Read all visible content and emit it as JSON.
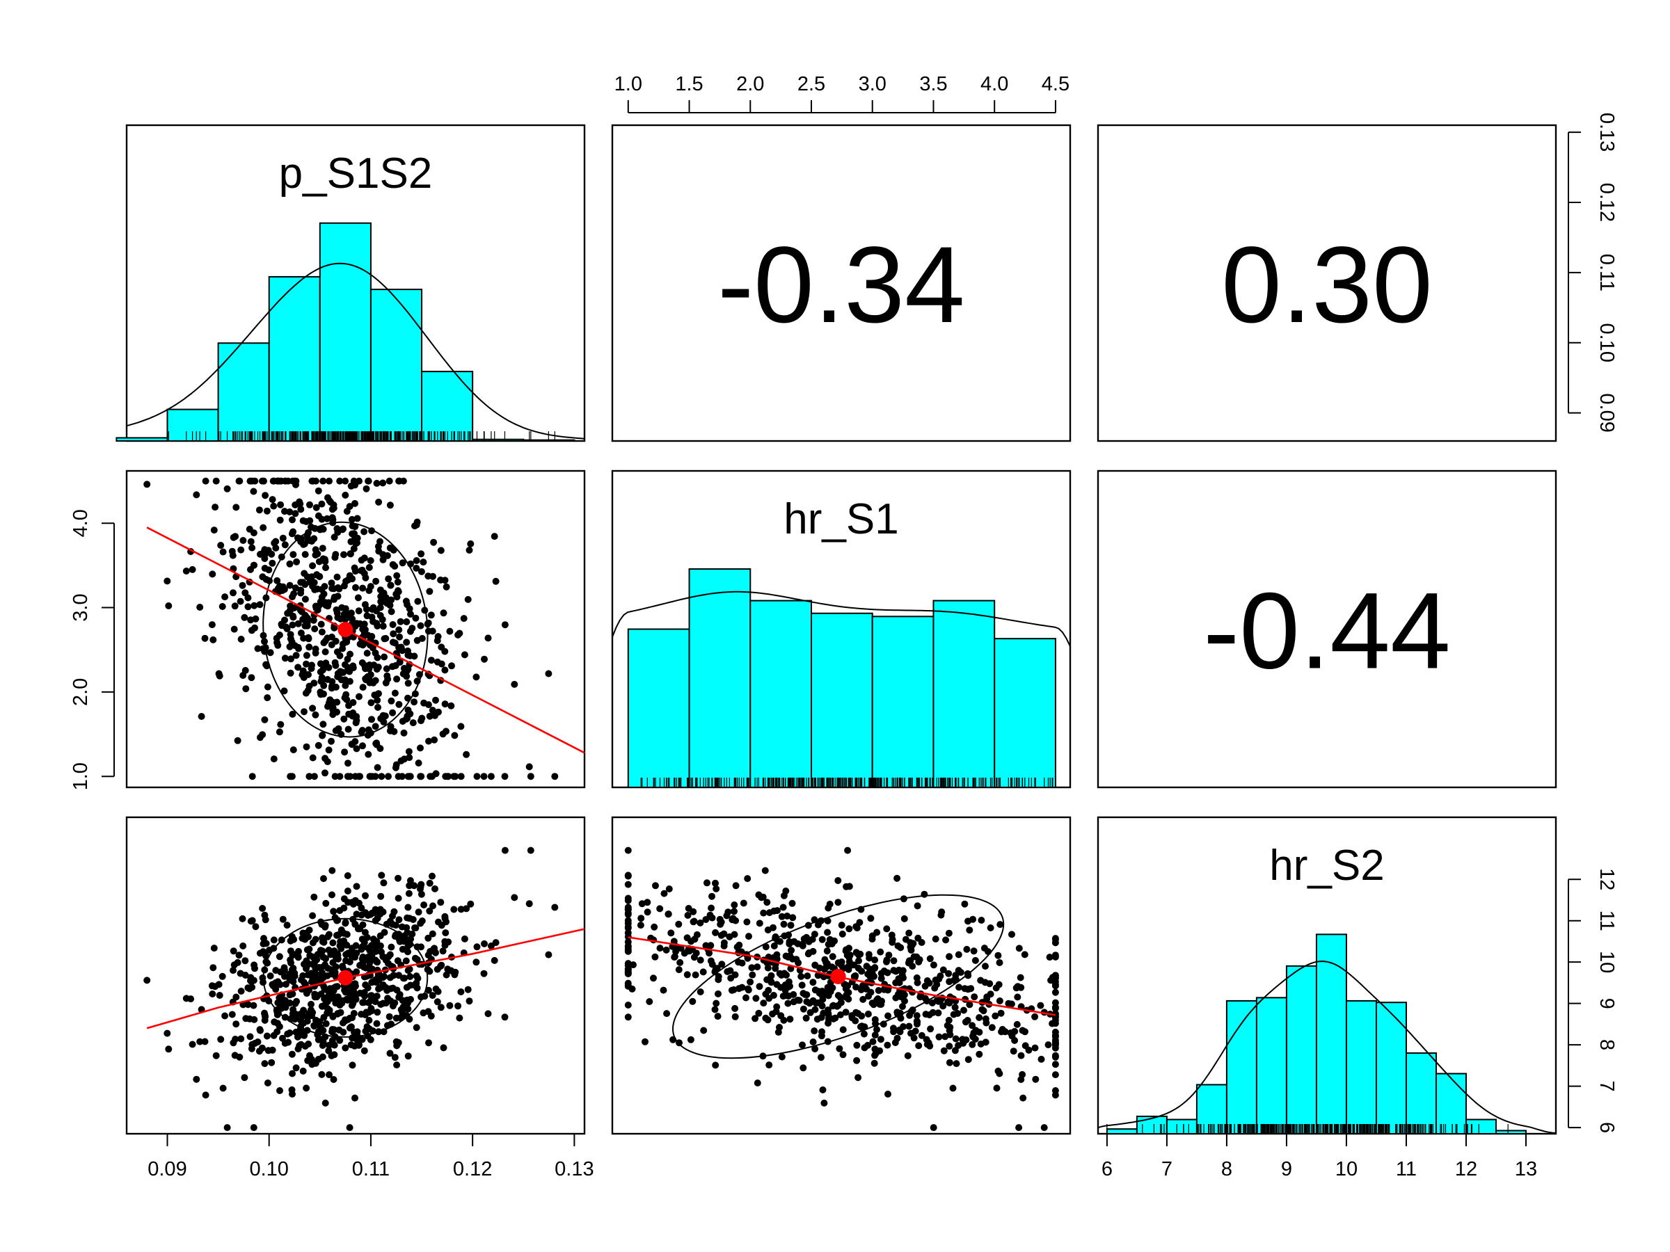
{
  "chart_data": {
    "type": "scatter-matrix",
    "title": "",
    "variables": [
      {
        "name": "p_S1S2",
        "range": [
          0.086,
          0.131
        ],
        "ticks": [
          "0.09",
          "0.10",
          "0.11",
          "0.12",
          "0.13"
        ],
        "tick_values": [
          0.09,
          0.1,
          0.11,
          0.12,
          0.13
        ]
      },
      {
        "name": "hr_S1",
        "range": [
          0.87,
          4.62
        ],
        "ticks": [
          "1.0",
          "1.5",
          "2.0",
          "2.5",
          "3.0",
          "3.5",
          "4.0",
          "4.5"
        ],
        "tick_values": [
          1.0,
          1.5,
          2.0,
          2.5,
          3.0,
          3.5,
          4.0,
          4.5
        ]
      },
      {
        "name": "hr_S2",
        "range": [
          5.85,
          13.5
        ],
        "ticks": [
          "6",
          "7",
          "8",
          "9",
          "10",
          "11",
          "12",
          "13"
        ],
        "tick_values": [
          6,
          7,
          8,
          9,
          10,
          11,
          12,
          13
        ],
        "right_ticks": [
          "6",
          "7",
          "8",
          "9",
          "10",
          "11",
          "12"
        ],
        "right_tick_values": [
          6,
          7,
          8,
          9,
          10,
          11,
          12
        ]
      }
    ],
    "left_axis_ticks": [
      "1.0",
      "2.0",
      "3.0",
      "4.0"
    ],
    "left_axis_tick_values": [
      1.0,
      2.0,
      3.0,
      4.0
    ],
    "right_axis_ticks_row1": [
      "0.09",
      "0.10",
      "0.11",
      "0.12",
      "0.13"
    ],
    "right_axis_tick_values_row1": [
      0.09,
      0.1,
      0.11,
      0.12,
      0.13
    ],
    "correlations": [
      {
        "row": 1,
        "col": 2,
        "label": "-0.34"
      },
      {
        "row": 1,
        "col": 3,
        "label": "0.30"
      },
      {
        "row": 2,
        "col": 3,
        "label": "-0.44"
      }
    ],
    "histograms": [
      {
        "variable": "p_S1S2",
        "breaks": [
          0.085,
          0.09,
          0.095,
          0.1,
          0.105,
          0.11,
          0.115,
          0.12,
          0.125,
          0.13
        ],
        "heights": [
          0.01,
          0.1,
          0.31,
          0.52,
          0.69,
          0.48,
          0.22,
          0.005,
          0.003
        ]
      },
      {
        "variable": "hr_S1",
        "breaks": [
          1.0,
          1.5,
          2.0,
          2.5,
          3.0,
          3.5,
          4.0,
          4.5
        ],
        "heights": [
          0.5,
          0.69,
          0.59,
          0.55,
          0.54,
          0.59,
          0.47
        ]
      },
      {
        "variable": "hr_S2",
        "breaks": [
          6.0,
          6.5,
          7.0,
          7.5,
          8.0,
          8.5,
          9.0,
          9.5,
          10.0,
          10.5,
          11.0,
          11.5,
          12.0,
          12.5,
          13.0
        ],
        "heights": [
          0.015,
          0.055,
          0.045,
          0.155,
          0.42,
          0.43,
          0.53,
          0.63,
          0.42,
          0.415,
          0.255,
          0.19,
          0.045,
          0.01
        ]
      }
    ],
    "scatter_fits": [
      {
        "x": "p_S1S2",
        "y": "hr_S1",
        "line": [
          [
            0.088,
            3.95
          ],
          [
            0.131,
            1.28
          ]
        ],
        "center": [
          0.1075,
          2.74
        ],
        "ellipse": {
          "rx": 0.0062,
          "ry": 0.98,
          "angle": -5
        }
      },
      {
        "x": "p_S1S2",
        "y": "hr_S2",
        "line": [
          [
            0.088,
            8.4
          ],
          [
            0.095,
            8.9
          ],
          [
            0.1075,
            9.62
          ],
          [
            0.12,
            10.2
          ],
          [
            0.131,
            10.8
          ]
        ],
        "center": [
          0.1075,
          9.62
        ],
        "ellipse": {
          "rx": 0.0062,
          "ry": 1.1,
          "angle": 0
        }
      },
      {
        "x": "hr_S1",
        "y": "hr_S2",
        "line": [
          [
            1.0,
            10.6
          ],
          [
            2.0,
            10.15
          ],
          [
            2.7,
            9.65
          ],
          [
            3.5,
            9.2
          ],
          [
            4.5,
            8.72
          ]
        ],
        "center": [
          2.72,
          9.65
        ],
        "ellipse": {
          "rx": 1.1,
          "ry": 1.1,
          "angle": -20
        }
      }
    ]
  }
}
